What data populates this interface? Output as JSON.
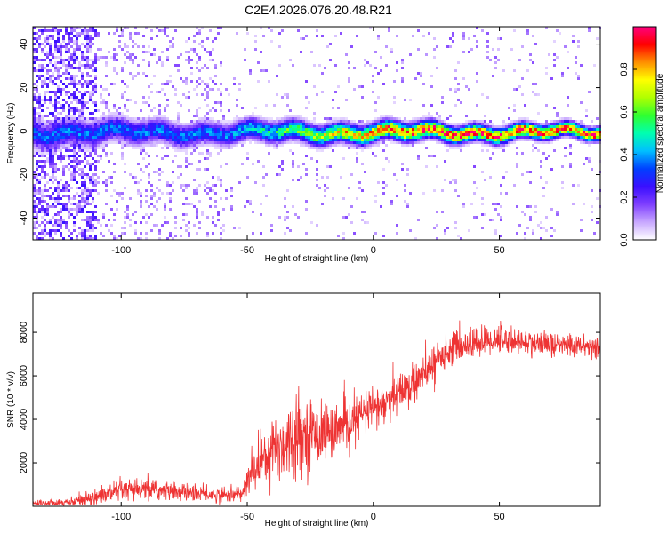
{
  "title": "C2E4.2026.076.20.48.R21",
  "chart_data": [
    {
      "type": "heatmap",
      "xlabel": "Height of straight line (km)",
      "ylabel": "Frequency (Hz)",
      "xlim": [
        -135,
        90
      ],
      "ylim": [
        -50,
        48
      ],
      "xticks": [
        -100,
        -50,
        0,
        50
      ],
      "yticks": [
        -40,
        -20,
        0,
        20,
        40
      ],
      "ridge_frequency_hz": 0,
      "ridge_width_hz_at_low": 12,
      "ridge_width_hz_at_high": 6,
      "colorbar": {
        "label": "Normalized spectral amplitude",
        "range": [
          0.0,
          1.0
        ],
        "ticks": [
          0.0,
          0.2,
          0.4,
          0.6,
          0.8
        ],
        "colormap": [
          "#ffffff",
          "#c8a8ff",
          "#7f3fff",
          "#3a0fff",
          "#0040ff",
          "#00bfff",
          "#00ffb0",
          "#30ff30",
          "#b0ff00",
          "#ffff00",
          "#ff9000",
          "#ff0000",
          "#ff0080"
        ]
      }
    },
    {
      "type": "line",
      "xlabel": "Height of straight line (km)",
      "ylabel": "SNR (10 * v/v)",
      "xlim": [
        -135,
        90
      ],
      "ylim": [
        0,
        9800
      ],
      "xticks": [
        -100,
        -50,
        0,
        50
      ],
      "yticks": [
        2000,
        4000,
        6000,
        8000
      ],
      "series": [
        {
          "name": "SNR",
          "color": "#ee3333",
          "envelope_x": [
            -135,
            -120,
            -110,
            -100,
            -90,
            -80,
            -70,
            -60,
            -52,
            -48,
            -45,
            -42,
            -38,
            -35,
            -30,
            -25,
            -20,
            -15,
            -10,
            -5,
            0,
            5,
            10,
            15,
            20,
            25,
            30,
            35,
            40,
            45,
            50,
            55,
            60,
            65,
            70,
            75,
            80,
            85,
            90
          ],
          "envelope_mean": [
            150,
            200,
            450,
            700,
            750,
            700,
            600,
            500,
            550,
            1600,
            2000,
            2600,
            2700,
            2900,
            3400,
            3300,
            3400,
            3500,
            3700,
            4200,
            4500,
            4700,
            5200,
            5600,
            6000,
            6700,
            7200,
            7400,
            7500,
            7600,
            7700,
            7600,
            7550,
            7500,
            7450,
            7400,
            7400,
            7350,
            7300
          ],
          "envelope_spread": [
            120,
            180,
            350,
            450,
            450,
            400,
            350,
            300,
            350,
            900,
            1100,
            1400,
            1500,
            1600,
            1500,
            1400,
            1200,
            1100,
            1000,
            900,
            900,
            900,
            900,
            850,
            800,
            700,
            650,
            650,
            650,
            650,
            600,
            550,
            550,
            550,
            500,
            500,
            500,
            500,
            500
          ]
        }
      ]
    }
  ]
}
